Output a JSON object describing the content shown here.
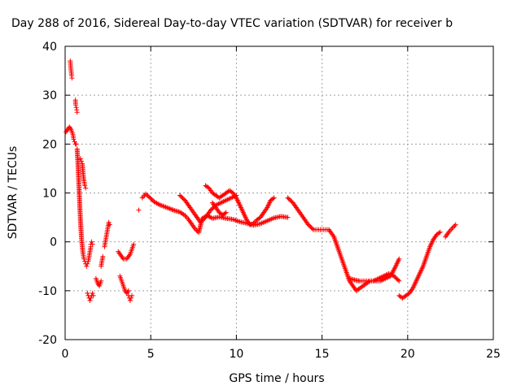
{
  "chart_data": {
    "type": "scatter",
    "title": "Day 288 of 2016, Sidereal Day-to-day VTEC variation (SDTVAR) for receiver b",
    "xlabel": "GPS time / hours",
    "ylabel": "SDTVAR / TECUs",
    "xlim": [
      0,
      25
    ],
    "ylim": [
      -20,
      40
    ],
    "xticks": [
      "0",
      "5",
      "10",
      "15",
      "20",
      "25"
    ],
    "yticks": [
      "-20",
      "-10",
      "0",
      "10",
      "20",
      "30",
      "40"
    ],
    "grid": true,
    "marker_color": "#ff0000",
    "marker": "plus",
    "series": [
      {
        "x": [
          0.05,
          0.15,
          0.25,
          0.35,
          0.45,
          0.5,
          0.55,
          0.6,
          0.65
        ],
        "y": [
          22.5,
          23,
          23.5,
          23,
          22,
          21,
          20.5,
          20,
          20
        ]
      },
      {
        "x": [
          0.3,
          0.32,
          0.35,
          0.38,
          0.4
        ],
        "y": [
          37,
          36,
          35,
          34,
          33.5
        ]
      },
      {
        "x": [
          0.6,
          0.62,
          0.65,
          0.68,
          0.7
        ],
        "y": [
          29,
          28,
          27.5,
          27,
          26.5
        ]
      },
      {
        "x": [
          0.7,
          0.75,
          0.8,
          0.85,
          0.9,
          0.95,
          1.0,
          1.05,
          1.1,
          1.15,
          1.2,
          1.25,
          1.3,
          1.35,
          1.4,
          1.45,
          1.5
        ],
        "y": [
          19,
          16,
          12,
          8,
          4,
          1,
          -1,
          -2.5,
          -3.5,
          -4,
          -4.5,
          -5,
          -4.5,
          -4,
          -3,
          -2,
          -1
        ]
      },
      {
        "x": [
          0.9,
          0.95,
          1.0,
          1.05,
          1.1,
          1.15,
          1.2
        ],
        "y": [
          17,
          16.5,
          16,
          14,
          12.5,
          11.5,
          11
        ]
      },
      {
        "x": [
          1.3,
          1.35,
          1.4,
          1.45,
          1.5,
          1.55,
          1.6,
          1.65
        ],
        "y": [
          -10.5,
          -11,
          -11.5,
          -12,
          -11.5,
          -11,
          -10.5,
          -11
        ]
      },
      {
        "x": [
          1.5,
          1.55,
          1.6
        ],
        "y": [
          -0.5,
          0,
          -0.5
        ]
      },
      {
        "x": [
          1.8,
          1.9,
          2.0,
          2.1
        ],
        "y": [
          -7.5,
          -8.5,
          -9,
          -8
        ]
      },
      {
        "x": [
          2.1,
          2.15,
          2.2
        ],
        "y": [
          -5,
          -4,
          -3
        ]
      },
      {
        "x": [
          2.3,
          2.35,
          2.4,
          2.45,
          2.5,
          2.55,
          2.6
        ],
        "y": [
          -1,
          0,
          1,
          2,
          3,
          4,
          3.5
        ]
      },
      {
        "x": [
          3.1,
          3.2,
          3.3,
          3.4,
          3.5,
          3.6,
          3.7,
          3.8,
          3.9,
          4.0
        ],
        "y": [
          -2,
          -2.5,
          -3,
          -3.5,
          -3.5,
          -3.5,
          -3,
          -2.5,
          -1.5,
          -0.5
        ]
      },
      {
        "x": [
          3.2,
          3.3,
          3.4,
          3.5,
          3.6,
          3.7
        ],
        "y": [
          -7,
          -8,
          -9,
          -10,
          -10.5,
          -10
        ]
      },
      {
        "x": [
          3.7,
          3.75,
          3.8,
          3.85,
          3.9
        ],
        "y": [
          -11,
          -11.5,
          -12,
          -11.5,
          -11
        ]
      },
      {
        "x": [
          4.3
        ],
        "y": [
          6.5
        ]
      },
      {
        "x": [
          4.5,
          4.7,
          4.9,
          5.2,
          5.5,
          5.8,
          6.1,
          6.4,
          6.7,
          7.0,
          7.2,
          7.4,
          7.6,
          7.8,
          8.0,
          8.3,
          8.6,
          9.0,
          9.4,
          9.8,
          10.2,
          10.6,
          11.0,
          11.4,
          11.8,
          12.2,
          12.6,
          13.0
        ],
        "y": [
          9,
          9.8,
          9.2,
          8.2,
          7.6,
          7.2,
          6.8,
          6.4,
          6.1,
          5.4,
          4.6,
          3.6,
          2.6,
          1.9,
          4.8,
          5.4,
          4.8,
          5.1,
          4.8,
          4.6,
          4.1,
          3.8,
          3.4,
          3.7,
          4.3,
          4.9,
          5.2,
          5.0
        ]
      },
      {
        "x": [
          6.7,
          7.0,
          7.3,
          7.6,
          7.9,
          8.2,
          8.5,
          8.8,
          9.1,
          9.4,
          9.7,
          10.0
        ],
        "y": [
          9.5,
          8.5,
          7,
          5.5,
          4,
          5,
          6.5,
          7.5,
          8,
          8.5,
          9,
          9.5
        ]
      },
      {
        "x": [
          8.2,
          8.4,
          8.6,
          8.8,
          9.0,
          9.2,
          9.4,
          9.6,
          9.8,
          10.0,
          10.2,
          10.4,
          10.6,
          10.8,
          11.0,
          11.2,
          11.4,
          11.6,
          11.8,
          12.0,
          12.2
        ],
        "y": [
          11.5,
          11,
          10,
          9.5,
          9,
          9.5,
          10,
          10.5,
          10,
          9,
          7.5,
          6,
          4.5,
          3.5,
          3.8,
          4.5,
          5,
          6,
          7,
          8.5,
          9
        ]
      },
      {
        "x": [
          8.6,
          8.8,
          9.0,
          9.2,
          9.4
        ],
        "y": [
          8,
          7,
          6,
          5.5,
          6
        ]
      },
      {
        "x": [
          13.0,
          13.3,
          13.6,
          13.9,
          14.2,
          14.5,
          14.8,
          15.1,
          15.4,
          15.7,
          16.0,
          16.2,
          16.4,
          16.6,
          16.8,
          17.0,
          17.2,
          17.4,
          17.6,
          17.8,
          18.0,
          18.3,
          18.6,
          18.9,
          19.2,
          19.5
        ],
        "y": [
          9,
          8,
          6.5,
          5,
          3.5,
          2.5,
          2.5,
          2.5,
          2.5,
          1,
          -2,
          -4,
          -6,
          -8,
          -9,
          -10,
          -9.5,
          -9,
          -8.5,
          -8,
          -8,
          -7.5,
          -7,
          -6.5,
          -7,
          -8
        ]
      },
      {
        "x": [
          16.6,
          16.9,
          17.2,
          17.5,
          17.8,
          18.1,
          18.4,
          18.7,
          19.0,
          19.3,
          19.5
        ],
        "y": [
          -7.5,
          -7.8,
          -8,
          -8,
          -8,
          -8,
          -8,
          -7.5,
          -7,
          -5,
          -3.5
        ]
      },
      {
        "x": [
          19.5,
          19.7,
          19.9,
          20.1,
          20.3,
          20.5,
          20.7,
          20.9,
          21.1,
          21.3,
          21.5,
          21.7,
          21.9
        ],
        "y": [
          -11,
          -11.5,
          -11,
          -10.5,
          -9.5,
          -8,
          -6.5,
          -5,
          -3,
          -1,
          0.5,
          1.5,
          2
        ]
      },
      {
        "x": [
          22.2,
          22.4,
          22.6,
          22.8
        ],
        "y": [
          1,
          2,
          2.8,
          3.5
        ]
      }
    ]
  }
}
